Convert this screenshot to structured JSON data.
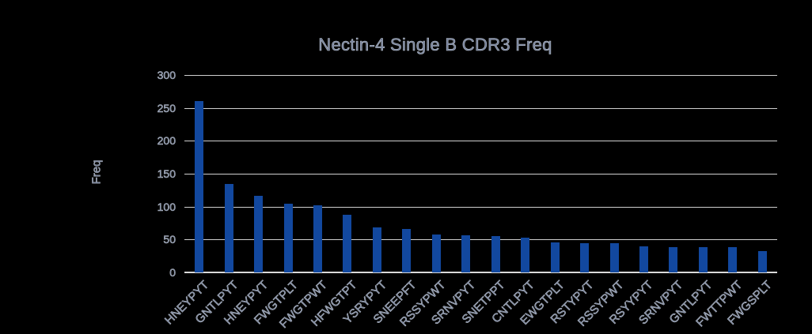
{
  "chart": {
    "title": "Nectin-4 Single B CDR3 Freq",
    "y_axis_title": "Freq"
  },
  "chart_data": {
    "type": "bar",
    "title": "Nectin-4 Single B CDR3 Freq",
    "xlabel": "",
    "ylabel": "Freq",
    "ylim": [
      0,
      300
    ],
    "yticks": [
      0,
      50,
      100,
      150,
      200,
      250,
      300
    ],
    "grid": true,
    "legend_position": "none",
    "x_tick_rotation_deg": 45,
    "background_color": "#000000",
    "bar_color": "#12489f",
    "gridline_color": "#cfcfcf",
    "text_color": "#6d7994",
    "categories": [
      "HNEYPYT",
      "GNTLPYT",
      "HNEYPYT",
      "FWGTPLT",
      "FWGTPWT",
      "HFWGTPT",
      "YSRYPYT",
      "SNEEPFT",
      "RSSYPWT",
      "SRNVPYT",
      "SNETPPT",
      "CNTLPYT",
      "EWGTPLT",
      "RSTYPYT",
      "RSSYPWT",
      "RSYYPYT",
      "SRNVPYT",
      "GNTLPYT",
      "FWTTPWT",
      "FWGSPLT"
    ],
    "values": [
      260,
      135,
      116,
      105,
      102,
      88,
      68,
      66,
      58,
      56,
      55,
      53,
      46,
      44,
      44,
      40,
      38,
      38,
      38,
      33
    ]
  }
}
